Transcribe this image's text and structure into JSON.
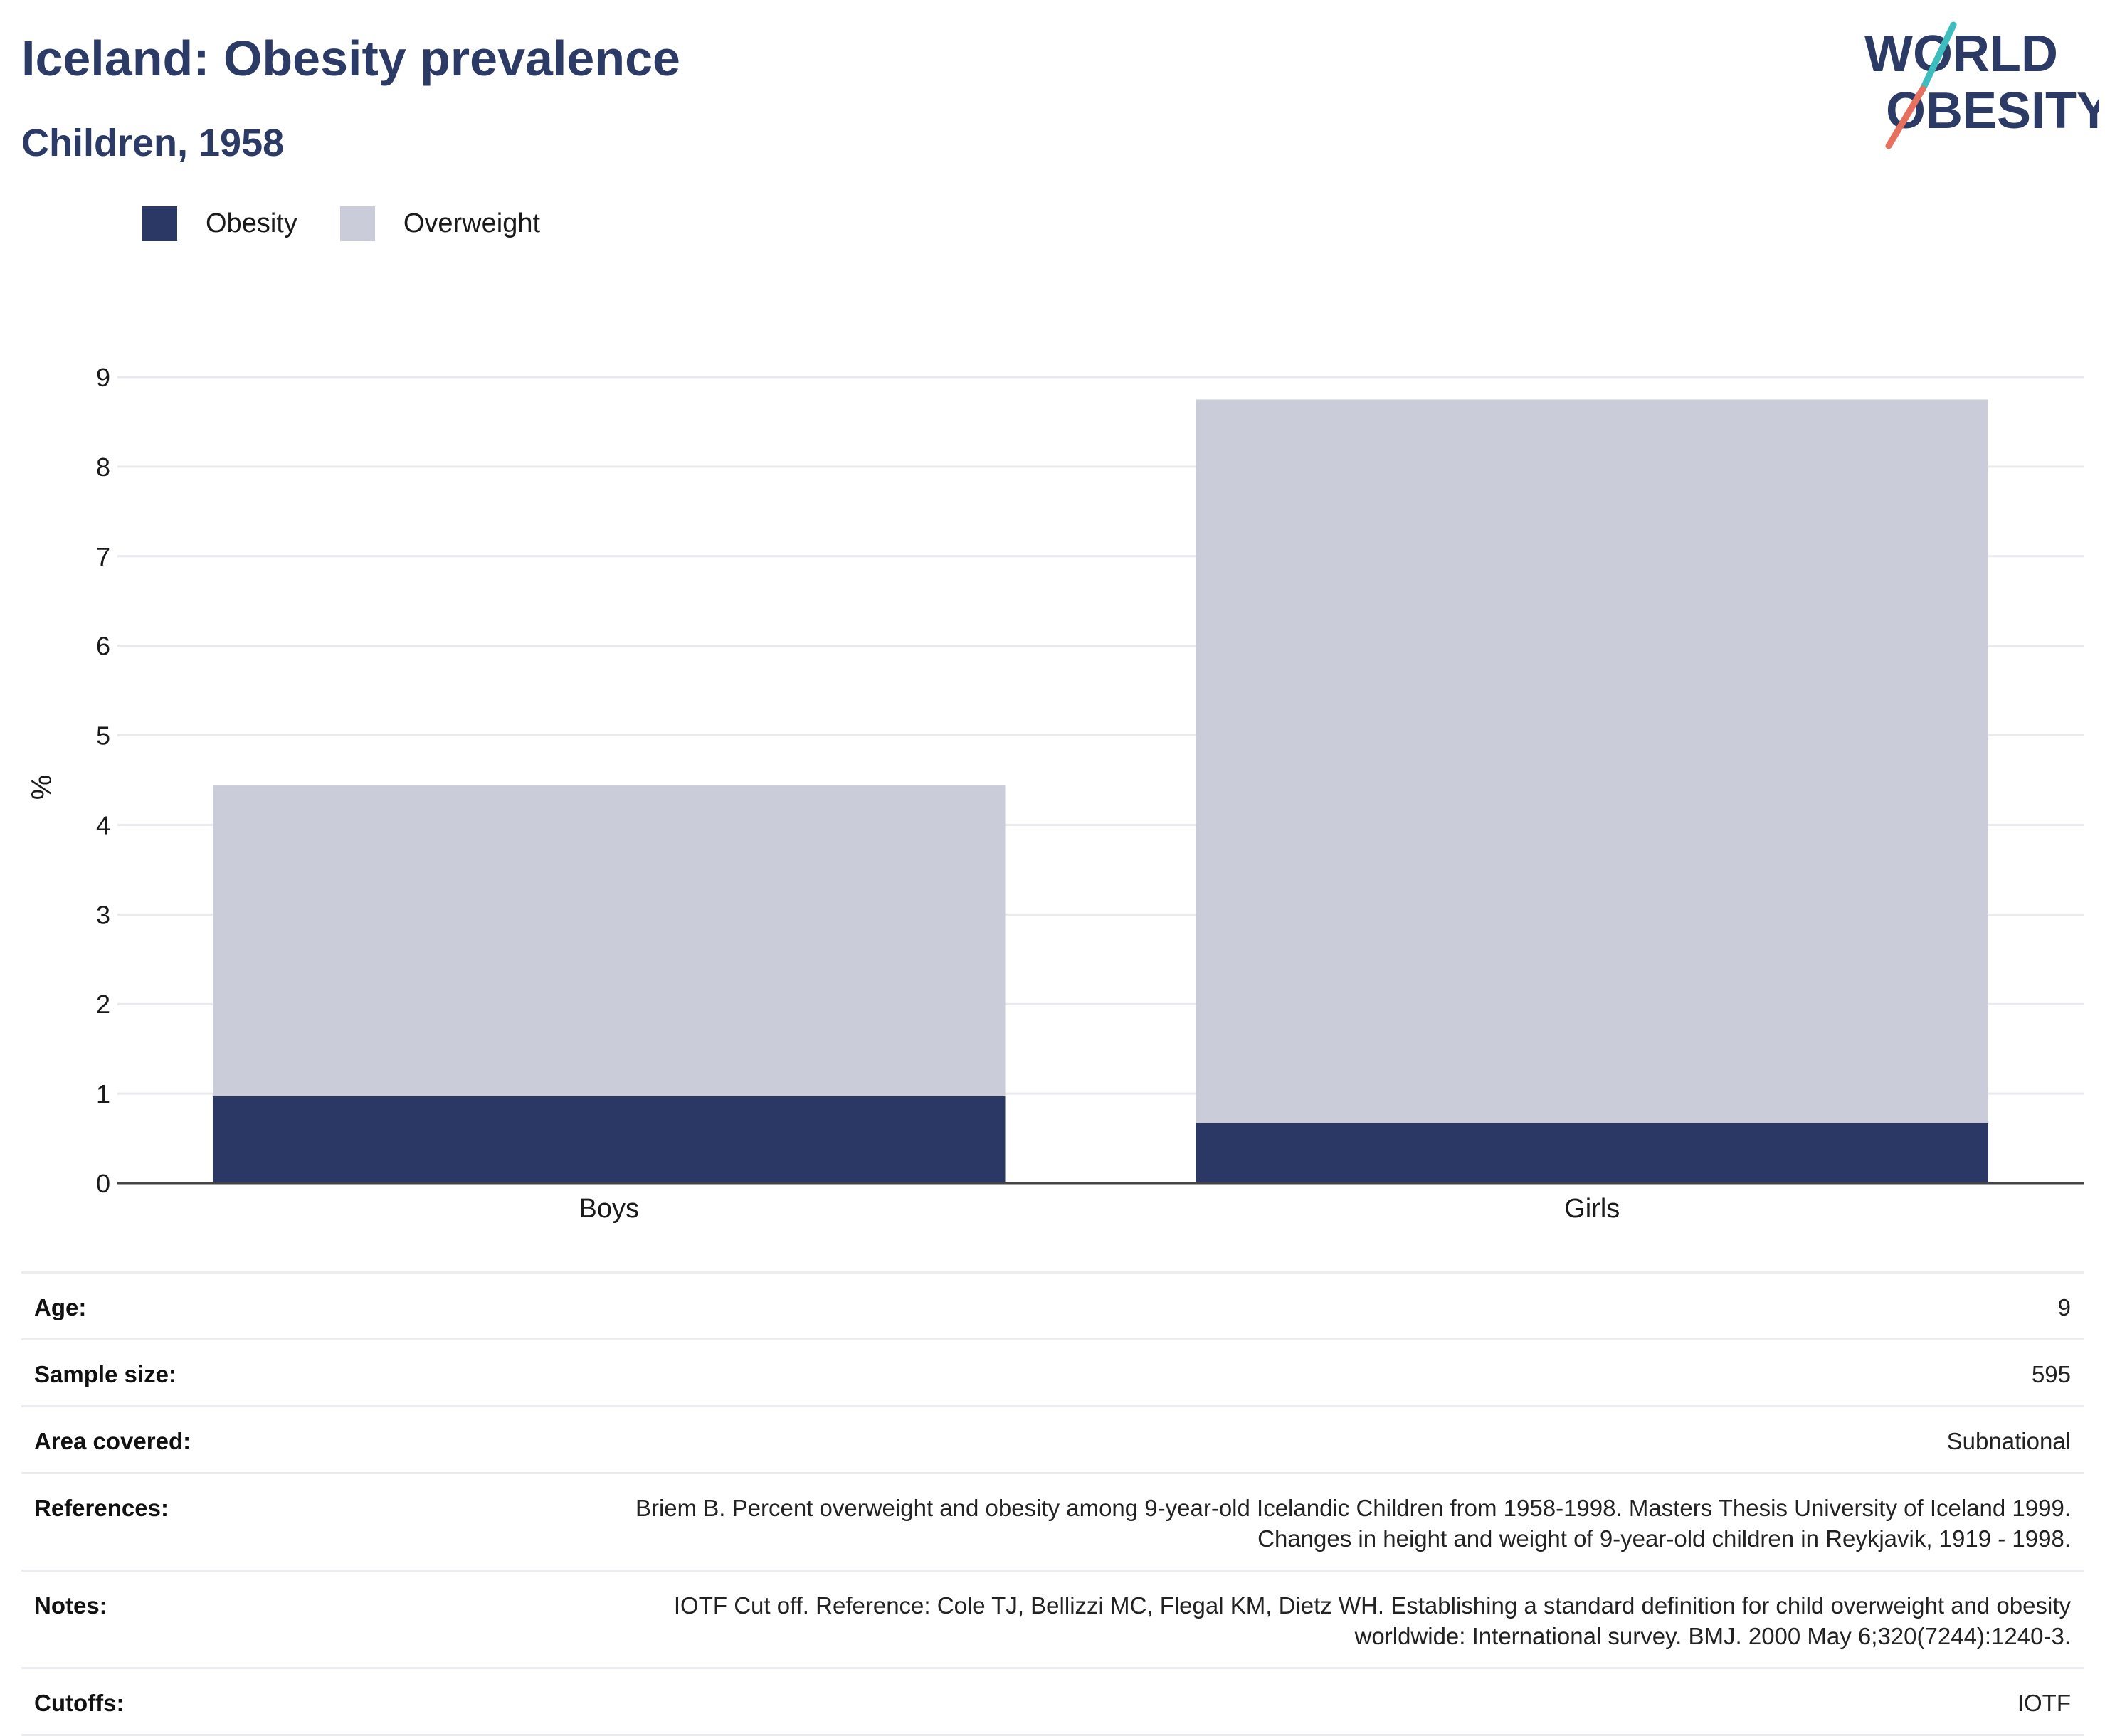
{
  "header": {
    "title": "Iceland: Obesity prevalence",
    "subtitle": "Children, 1958"
  },
  "logo": {
    "line1": "WORLD",
    "line2": "OBESITY",
    "colors": {
      "text": "#2c3a66",
      "slash_top": "#3dbdbd",
      "slash_bottom": "#e8705f"
    }
  },
  "legend": {
    "items": [
      {
        "label": "Obesity",
        "color": "#2b3764"
      },
      {
        "label": "Overweight",
        "color": "#cacdd9"
      }
    ]
  },
  "chart_data": {
    "type": "bar",
    "stacked": true,
    "categories": [
      "Boys",
      "Girls"
    ],
    "series": [
      {
        "name": "Obesity",
        "values": [
          0.97,
          0.67
        ],
        "color": "#2b3764"
      },
      {
        "name": "Overweight",
        "values": [
          3.47,
          8.08
        ],
        "color": "#cacdd9"
      }
    ],
    "ylabel": "%",
    "xlabel": "",
    "ylim": [
      0,
      9
    ],
    "yticks": [
      0,
      1,
      2,
      3,
      4,
      5,
      6,
      7,
      8,
      9
    ],
    "grid": true,
    "legend_position": "top-left"
  },
  "details": [
    {
      "key": "Age:",
      "value": "9"
    },
    {
      "key": "Sample size:",
      "value": "595"
    },
    {
      "key": "Area covered:",
      "value": "Subnational"
    },
    {
      "key": "References:",
      "value": "Briem B. Percent overweight and obesity among 9-year-old Icelandic Children from 1958-1998. Masters Thesis University of Iceland 1999. Changes in height and weight of 9-year-old children in Reykjavik, 1919 - 1998."
    },
    {
      "key": "Notes:",
      "value": "IOTF Cut off. Reference: Cole TJ, Bellizzi MC, Flegal KM, Dietz WH. Establishing a standard definition for child overweight and obesity worldwide: International survey. BMJ. 2000 May 6;320(7244):1240-3."
    },
    {
      "key": "Cutoffs:",
      "value": "IOTF"
    }
  ]
}
